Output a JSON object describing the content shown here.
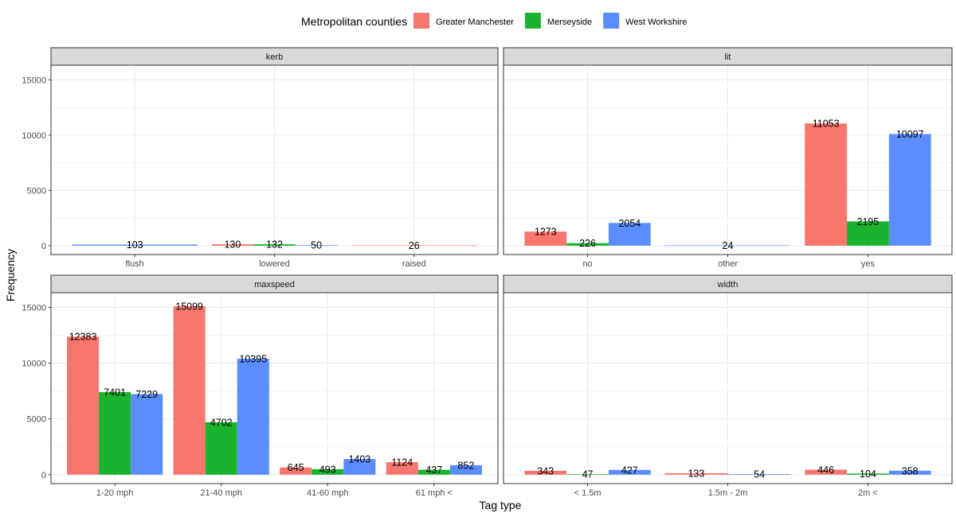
{
  "chart_data": {
    "type": "bar",
    "xlabel": "Tag type",
    "ylabel": "Frequency",
    "ylim": [
      0,
      16000
    ],
    "yticks": [
      0,
      5000,
      10000,
      15000
    ],
    "grid": true,
    "legend": {
      "title": "Metropolitan counties",
      "placement": "top",
      "entries": [
        {
          "name": "Greater Manchester",
          "color": "#F8766D"
        },
        {
          "name": "Merseyside",
          "color": "#1AB32E"
        },
        {
          "name": "West Workshire",
          "color": "#5B8DFF"
        }
      ]
    },
    "panels": [
      {
        "title": "kerb",
        "categories": [
          "flush",
          "lowered",
          "raised"
        ],
        "bars": [
          {
            "category": "flush",
            "series": "West Workshire",
            "value": 103,
            "label": "103"
          },
          {
            "category": "lowered",
            "series": "Greater Manchester",
            "value": 130,
            "label": "130"
          },
          {
            "category": "lowered",
            "series": "Merseyside",
            "value": 132,
            "label": "132"
          },
          {
            "category": "lowered",
            "series": "West Workshire",
            "value": 50,
            "label": "50"
          },
          {
            "category": "raised",
            "series": "Greater Manchester",
            "value": 26,
            "label": "26"
          }
        ]
      },
      {
        "title": "lit",
        "categories": [
          "no",
          "other",
          "yes"
        ],
        "bars": [
          {
            "category": "no",
            "series": "Greater Manchester",
            "value": 1273,
            "label": "1273"
          },
          {
            "category": "no",
            "series": "Merseyside",
            "value": 226,
            "label": "226"
          },
          {
            "category": "no",
            "series": "West Workshire",
            "value": 2054,
            "label": "2054"
          },
          {
            "category": "other",
            "series": "West Workshire",
            "value": 24,
            "label": "24"
          },
          {
            "category": "yes",
            "series": "Greater Manchester",
            "value": 11053,
            "label": "11053"
          },
          {
            "category": "yes",
            "series": "Merseyside",
            "value": 2195,
            "label": "2195"
          },
          {
            "category": "yes",
            "series": "West Workshire",
            "value": 10097,
            "label": "10097"
          }
        ]
      },
      {
        "title": "maxspeed",
        "categories": [
          "1-20 mph",
          "21-40 mph",
          "41-60 mph",
          "61 mph <"
        ],
        "bars": [
          {
            "category": "1-20 mph",
            "series": "Greater Manchester",
            "value": 12383,
            "label": "12383"
          },
          {
            "category": "1-20 mph",
            "series": "Merseyside",
            "value": 7401,
            "label": "7401"
          },
          {
            "category": "1-20 mph",
            "series": "West Workshire",
            "value": 7229,
            "label": "7229"
          },
          {
            "category": "21-40 mph",
            "series": "Greater Manchester",
            "value": 15099,
            "label": "15099"
          },
          {
            "category": "21-40 mph",
            "series": "Merseyside",
            "value": 4702,
            "label": "4702"
          },
          {
            "category": "21-40 mph",
            "series": "West Workshire",
            "value": 10395,
            "label": "10395"
          },
          {
            "category": "41-60 mph",
            "series": "Greater Manchester",
            "value": 645,
            "label": "645"
          },
          {
            "category": "41-60 mph",
            "series": "Merseyside",
            "value": 493,
            "label": "493"
          },
          {
            "category": "41-60 mph",
            "series": "West Workshire",
            "value": 1403,
            "label": "1403"
          },
          {
            "category": "61 mph <",
            "series": "Greater Manchester",
            "value": 1124,
            "label": "1124"
          },
          {
            "category": "61 mph <",
            "series": "Merseyside",
            "value": 437,
            "label": "437"
          },
          {
            "category": "61 mph <",
            "series": "West Workshire",
            "value": 852,
            "label": "852"
          }
        ]
      },
      {
        "title": "width",
        "categories": [
          "< 1.5m",
          "1.5m - 2m",
          "2m <"
        ],
        "bars": [
          {
            "category": "< 1.5m",
            "series": "Greater Manchester",
            "value": 343,
            "label": "343"
          },
          {
            "category": "< 1.5m",
            "series": "Merseyside",
            "value": 47,
            "label": "47"
          },
          {
            "category": "< 1.5m",
            "series": "West Workshire",
            "value": 427,
            "label": "427"
          },
          {
            "category": "1.5m - 2m",
            "series": "Greater Manchester",
            "value": 133,
            "label": "133"
          },
          {
            "category": "1.5m - 2m",
            "series": "West Workshire",
            "value": 54,
            "label": "54"
          },
          {
            "category": "2m <",
            "series": "Greater Manchester",
            "value": 446,
            "label": "446"
          },
          {
            "category": "2m <",
            "series": "Merseyside",
            "value": 104,
            "label": "104"
          },
          {
            "category": "2m <",
            "series": "West Workshire",
            "value": 358,
            "label": "358"
          }
        ]
      }
    ]
  }
}
